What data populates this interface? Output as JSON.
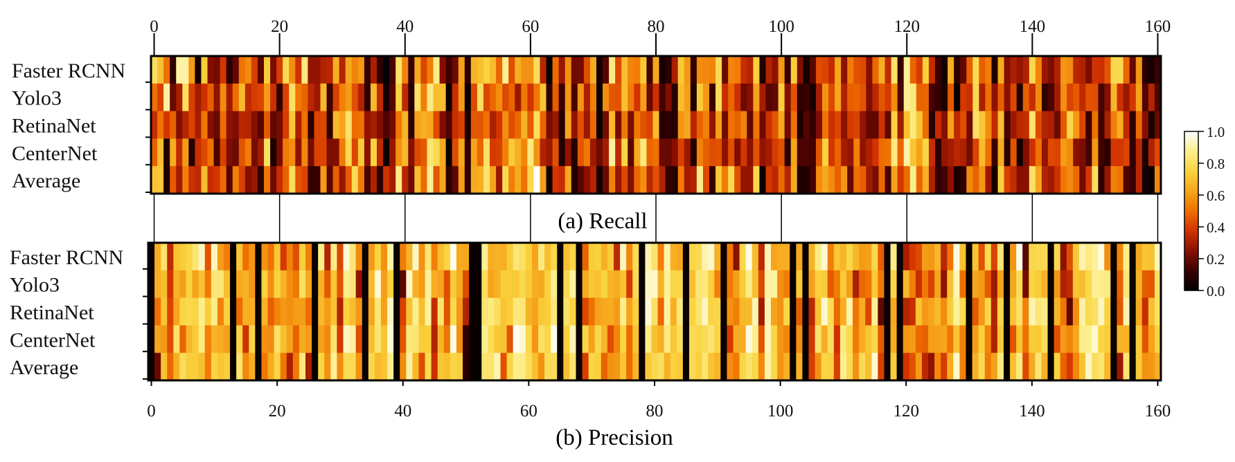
{
  "chart_data": [
    {
      "type": "heatmap",
      "id": "recall",
      "title": "(a) Recall",
      "rows": [
        "Faster RCNN",
        "Yolo3",
        "RetinaNet",
        "CenterNet",
        "Average"
      ],
      "x_ticks": [
        "0",
        "20",
        "40",
        "60",
        "80",
        "100",
        "120",
        "140",
        "160"
      ],
      "xlim": [
        0,
        160
      ],
      "n_columns": 161,
      "colormap": "afmhot",
      "value_range": [
        0,
        1
      ],
      "values": [
        [
          0.8,
          0.7,
          0.5,
          0.1,
          0.9,
          0.9,
          0.6
        ],
        [
          0.5,
          0.4,
          0.9,
          0.2,
          0.3,
          0.8,
          0.4
        ]
      ],
      "values_note": "only the first columns are transcribed; the remaining cells are generated by the page script"
    },
    {
      "type": "heatmap",
      "id": "precision",
      "title": "(b) Precision",
      "rows": [
        "Faster RCNN",
        "Yolo3",
        "RetinaNet",
        "CenterNet",
        "Average"
      ],
      "x_ticks": [
        "0",
        "20",
        "40",
        "60",
        "80",
        "100",
        "120",
        "140",
        "160"
      ],
      "xlim": [
        0,
        160
      ],
      "n_columns": 161,
      "colormap": "afmhot",
      "value_range": [
        0,
        1
      ]
    }
  ],
  "colorbar": {
    "ticks": [
      "0.0",
      "0.2",
      "0.4",
      "0.6",
      "0.8",
      "1.0"
    ],
    "colors": [
      "#000000",
      "#3b0000",
      "#8a1000",
      "#d23300",
      "#ef6f00",
      "#f6a61c",
      "#fad33f",
      "#fcee8c",
      "#ffffff"
    ]
  }
}
